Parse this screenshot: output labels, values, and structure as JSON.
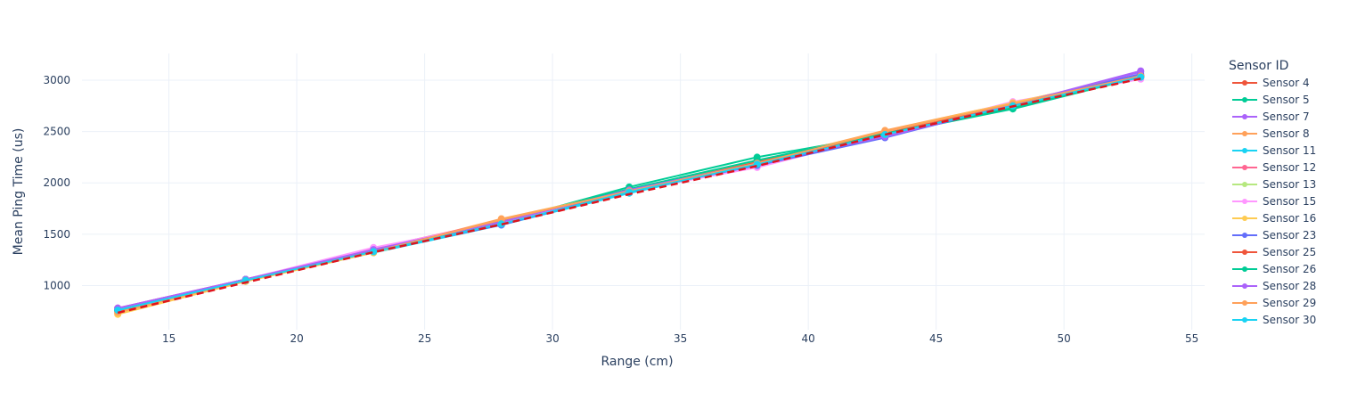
{
  "chart_data": {
    "type": "line",
    "title": "",
    "xlabel": "Range (cm)",
    "ylabel": "Mean Ping Time (us)",
    "xlim": [
      11.6,
      55.5
    ],
    "ylim": [
      570,
      3260
    ],
    "xticks": [
      15,
      20,
      25,
      30,
      35,
      40,
      45,
      50,
      55
    ],
    "yticks": [
      1000,
      1500,
      2000,
      2500,
      3000
    ],
    "grid": true,
    "legend": {
      "title": "Sensor ID",
      "placement": "right"
    },
    "x": [
      13,
      18,
      23,
      28,
      33,
      38,
      43,
      48,
      53
    ],
    "series": [
      {
        "name": "Sensor 4",
        "color": "#EF553B",
        "values": [
          760,
          1050,
          1330,
          1640,
          1920,
          2190,
          2480,
          2760,
          3040
        ]
      },
      {
        "name": "Sensor 5",
        "color": "#00CC96",
        "values": [
          770,
          1060,
          1350,
          1620,
          1960,
          2250,
          2470,
          2720,
          3030
        ]
      },
      {
        "name": "Sensor 7",
        "color": "#AB63FA",
        "values": [
          780,
          1060,
          1360,
          1610,
          1930,
          2180,
          2460,
          2760,
          3080
        ]
      },
      {
        "name": "Sensor 8",
        "color": "#FFA15A",
        "values": [
          730,
          1050,
          1330,
          1650,
          1920,
          2200,
          2510,
          2780,
          3050
        ]
      },
      {
        "name": "Sensor 11",
        "color": "#19D3F3",
        "values": [
          760,
          1050,
          1320,
          1590,
          1900,
          2180,
          2470,
          2760,
          3030
        ]
      },
      {
        "name": "Sensor 12",
        "color": "#FF6692",
        "values": [
          780,
          1060,
          1360,
          1630,
          1930,
          2190,
          2480,
          2770,
          3040
        ]
      },
      {
        "name": "Sensor 13",
        "color": "#B6E880",
        "values": [
          770,
          1050,
          1340,
          1620,
          1930,
          2210,
          2480,
          2740,
          3020
        ]
      },
      {
        "name": "Sensor 15",
        "color": "#FF97FF",
        "values": [
          770,
          1060,
          1370,
          1610,
          1920,
          2150,
          2470,
          2790,
          3010
        ]
      },
      {
        "name": "Sensor 16",
        "color": "#FECB52",
        "values": [
          720,
          1040,
          1320,
          1640,
          1930,
          2200,
          2500,
          2780,
          3050
        ]
      },
      {
        "name": "Sensor 23",
        "color": "#636EFA",
        "values": [
          760,
          1050,
          1340,
          1590,
          1920,
          2170,
          2440,
          2760,
          3060
        ]
      },
      {
        "name": "Sensor 25",
        "color": "#EF553B",
        "values": [
          750,
          1050,
          1330,
          1630,
          1920,
          2200,
          2480,
          2760,
          3040
        ]
      },
      {
        "name": "Sensor 26",
        "color": "#00CC96",
        "values": [
          760,
          1060,
          1340,
          1620,
          1940,
          2220,
          2480,
          2730,
          3030
        ]
      },
      {
        "name": "Sensor 28",
        "color": "#AB63FA",
        "values": [
          780,
          1060,
          1350,
          1620,
          1930,
          2190,
          2450,
          2760,
          3090
        ]
      },
      {
        "name": "Sensor 29",
        "color": "#FFA15A",
        "values": [
          740,
          1050,
          1330,
          1640,
          1920,
          2190,
          2500,
          2770,
          3040
        ]
      },
      {
        "name": "Sensor 30",
        "color": "#19D3F3",
        "values": [
          760,
          1050,
          1330,
          1600,
          1910,
          2180,
          2470,
          2750,
          3030
        ]
      }
    ],
    "reference_line": {
      "color": "#e0141e",
      "style": "dashed",
      "values": [
        735,
        1030,
        1325,
        1595,
        1890,
        2165,
        2470,
        2745,
        3015
      ]
    }
  }
}
